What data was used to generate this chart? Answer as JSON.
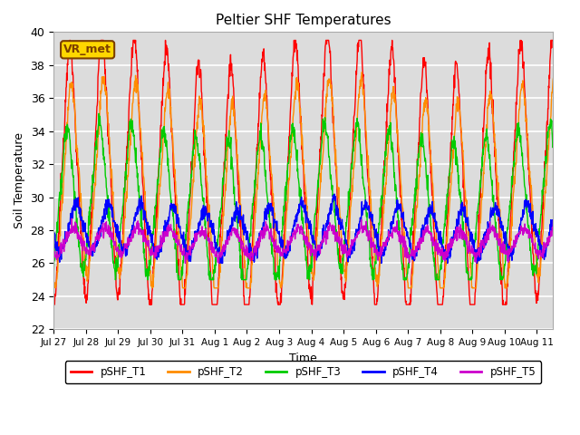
{
  "title": "Peltier SHF Temperatures",
  "xlabel": "Time",
  "ylabel": "Soil Temperature",
  "ylim": [
    22,
    40
  ],
  "background_color": "#f0f0f0",
  "plot_bg_color": "#dcdcdc",
  "grid_color": "#ffffff",
  "annotation_text": "VR_met",
  "annotation_color": "#7B3F00",
  "annotation_bg": "#FFD700",
  "series": [
    {
      "label": "pSHF_T1",
      "color": "#FF0000",
      "base": 31.0,
      "amp": 8.0,
      "phase": 0.0,
      "noise": 0.3
    },
    {
      "label": "pSHF_T2",
      "color": "#FF8C00",
      "base": 30.5,
      "amp": 6.0,
      "phase": 0.05,
      "noise": 0.25
    },
    {
      "label": "pSHF_T3",
      "color": "#00CC00",
      "base": 29.5,
      "amp": 4.5,
      "phase": -0.08,
      "noise": 0.3
    },
    {
      "label": "pSHF_T4",
      "color": "#0000FF",
      "base": 28.0,
      "amp": 1.5,
      "phase": 0.2,
      "noise": 0.25
    },
    {
      "label": "pSHF_T5",
      "color": "#CC00CC",
      "base": 27.3,
      "amp": 0.8,
      "phase": 0.1,
      "noise": 0.2
    }
  ],
  "xtick_labels": [
    "Jul 27",
    "Jul 28",
    "Jul 29",
    "Jul 30",
    "Jul 31",
    "Aug 1",
    "Aug 2",
    "Aug 3",
    "Aug 4",
    "Aug 5",
    "Aug 6",
    "Aug 7",
    "Aug 8",
    "Aug 9",
    "Aug 10",
    "Aug 11"
  ],
  "figsize": [
    6.4,
    4.8
  ],
  "dpi": 100
}
